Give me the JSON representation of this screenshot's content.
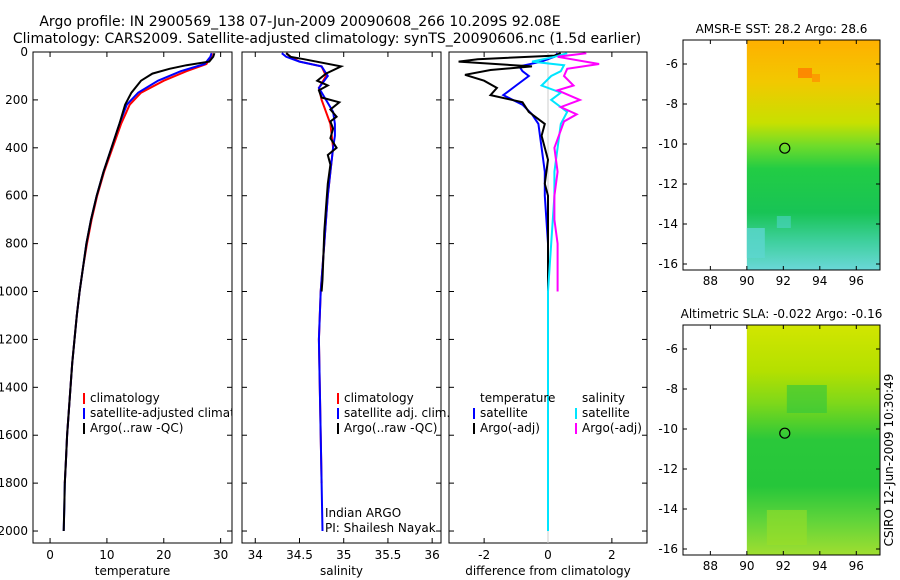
{
  "header": {
    "line1": "Argo profile: IN 2900569_138 07-Jun-2009 20090608_266 10.209S 92.08E",
    "line2": "Climatology: CARS2009. Satellite-adjusted climatology: synTS_20090606.nc (1.5d earlier)"
  },
  "side_label": "CSIRO 12-Jun-2009 10:30:49",
  "chart_data": [
    {
      "id": "temperature",
      "type": "line",
      "xlabel": "temperature",
      "ylabel": "",
      "xlim": [
        -3,
        32
      ],
      "ylim": [
        2050,
        0
      ],
      "xticks": [
        0,
        10,
        20,
        30
      ],
      "yticks": [
        0,
        200,
        400,
        600,
        800,
        1000,
        1200,
        1400,
        1600,
        1800,
        2000
      ],
      "legend": [
        "climatology",
        "satellite-adjusted climatology",
        "Argo(..raw -QC)"
      ],
      "series": [
        {
          "name": "climatology",
          "color": "#ff0000",
          "points": [
            [
              28.5,
              5
            ],
            [
              28.3,
              20
            ],
            [
              27.5,
              50
            ],
            [
              24,
              80
            ],
            [
              20,
              120
            ],
            [
              16,
              170
            ],
            [
              14,
              220
            ],
            [
              12.5,
              300
            ],
            [
              11,
              400
            ],
            [
              9.5,
              500
            ],
            [
              8.3,
              600
            ],
            [
              7.3,
              700
            ],
            [
              6.5,
              800
            ],
            [
              5.8,
              900
            ],
            [
              5.2,
              1000
            ],
            [
              4.7,
              1100
            ],
            [
              4.3,
              1200
            ],
            [
              3.9,
              1300
            ],
            [
              3.6,
              1400
            ],
            [
              3.3,
              1500
            ],
            [
              3.0,
              1600
            ],
            [
              2.8,
              1700
            ],
            [
              2.6,
              1800
            ]
          ]
        },
        {
          "name": "satellite-adjusted climatology",
          "color": "#0000ff",
          "points": [
            [
              28.4,
              5
            ],
            [
              28.2,
              20
            ],
            [
              27.2,
              50
            ],
            [
              23,
              80
            ],
            [
              19,
              120
            ],
            [
              15.5,
              170
            ],
            [
              13.5,
              220
            ],
            [
              12.2,
              300
            ],
            [
              10.8,
              400
            ],
            [
              9.4,
              500
            ],
            [
              8.2,
              600
            ],
            [
              7.2,
              700
            ],
            [
              6.4,
              800
            ],
            [
              5.8,
              900
            ],
            [
              5.2,
              1000
            ],
            [
              4.7,
              1100
            ],
            [
              4.3,
              1200
            ],
            [
              3.9,
              1300
            ],
            [
              3.6,
              1400
            ],
            [
              3.3,
              1500
            ],
            [
              3.0,
              1600
            ],
            [
              2.8,
              1700
            ],
            [
              2.6,
              1800
            ],
            [
              2.5,
              1900
            ],
            [
              2.4,
              2000
            ]
          ]
        },
        {
          "name": "Argo(..raw -QC)",
          "color": "#000000",
          "points": [
            [
              28.9,
              5
            ],
            [
              28.7,
              20
            ],
            [
              28,
              40
            ],
            [
              24,
              55
            ],
            [
              21,
              70
            ],
            [
              18,
              90
            ],
            [
              16,
              120
            ],
            [
              14.3,
              170
            ],
            [
              13.2,
              220
            ],
            [
              12.2,
              300
            ],
            [
              10.8,
              400
            ],
            [
              9.4,
              500
            ],
            [
              8.2,
              600
            ],
            [
              7.2,
              700
            ],
            [
              6.4,
              800
            ],
            [
              5.8,
              900
            ],
            [
              5.2,
              1000
            ],
            [
              4.7,
              1100
            ],
            [
              4.3,
              1200
            ],
            [
              3.9,
              1300
            ],
            [
              3.6,
              1400
            ],
            [
              3.3,
              1500
            ],
            [
              3.0,
              1600
            ],
            [
              2.8,
              1700
            ],
            [
              2.6,
              1800
            ],
            [
              2.5,
              1900
            ],
            [
              2.4,
              2000
            ]
          ]
        }
      ]
    },
    {
      "id": "salinity",
      "type": "line",
      "xlabel": "salinity",
      "ylabel": "",
      "xlim": [
        33.85,
        36.1
      ],
      "ylim": [
        2050,
        0
      ],
      "xticks": [
        34,
        34.5,
        35,
        35.5,
        36
      ],
      "yticks": [
        0,
        200,
        400,
        600,
        800,
        1000,
        1200,
        1400,
        1600,
        1800,
        2000
      ],
      "legend": [
        "climatology",
        "satellite adj. clim.",
        "Argo(..raw -QC)"
      ],
      "annotation": [
        "Indian ARGO",
        "PI: Shailesh Nayak"
      ],
      "series": [
        {
          "name": "climatology",
          "color": "#ff0000",
          "points": [
            [
              34.35,
              5
            ],
            [
              34.4,
              20
            ],
            [
              34.5,
              40
            ],
            [
              34.75,
              60
            ],
            [
              34.8,
              100
            ],
            [
              34.72,
              150
            ],
            [
              34.75,
              200
            ],
            [
              34.8,
              250
            ],
            [
              34.85,
              300
            ],
            [
              34.88,
              400
            ],
            [
              34.85,
              500
            ],
            [
              34.82,
              600
            ],
            [
              34.8,
              700
            ],
            [
              34.78,
              800
            ],
            [
              34.76,
              900
            ],
            [
              34.74,
              1000
            ],
            [
              34.73,
              1100
            ],
            [
              34.72,
              1200
            ],
            [
              34.73,
              1400
            ],
            [
              34.74,
              1600
            ],
            [
              34.75,
              1800
            ]
          ]
        },
        {
          "name": "satellite adj. clim.",
          "color": "#0000ff",
          "points": [
            [
              34.3,
              5
            ],
            [
              34.35,
              20
            ],
            [
              34.5,
              40
            ],
            [
              34.75,
              60
            ],
            [
              34.82,
              100
            ],
            [
              34.72,
              150
            ],
            [
              34.8,
              200
            ],
            [
              34.88,
              250
            ],
            [
              34.9,
              300
            ],
            [
              34.9,
              350
            ],
            [
              34.88,
              400
            ],
            [
              34.85,
              500
            ],
            [
              34.82,
              600
            ],
            [
              34.8,
              700
            ],
            [
              34.78,
              800
            ],
            [
              34.76,
              900
            ],
            [
              34.74,
              1000
            ],
            [
              34.73,
              1100
            ],
            [
              34.72,
              1200
            ],
            [
              34.73,
              1400
            ],
            [
              34.74,
              1600
            ],
            [
              34.75,
              1800
            ],
            [
              34.76,
              2000
            ]
          ]
        },
        {
          "name": "Argo(..raw -QC)",
          "color": "#000000",
          "points": [
            [
              34.35,
              5
            ],
            [
              34.4,
              20
            ],
            [
              34.55,
              30
            ],
            [
              34.97,
              60
            ],
            [
              34.8,
              90
            ],
            [
              34.7,
              120
            ],
            [
              34.82,
              140
            ],
            [
              34.72,
              160
            ],
            [
              34.75,
              190
            ],
            [
              34.95,
              210
            ],
            [
              34.85,
              240
            ],
            [
              34.92,
              270
            ],
            [
              34.85,
              290
            ],
            [
              34.88,
              320
            ],
            [
              34.85,
              360
            ],
            [
              34.92,
              400
            ],
            [
              34.82,
              430
            ],
            [
              34.85,
              470
            ],
            [
              34.82,
              550
            ],
            [
              34.8,
              650
            ],
            [
              34.78,
              750
            ],
            [
              34.77,
              850
            ],
            [
              34.76,
              950
            ],
            [
              34.75,
              1000
            ]
          ]
        }
      ]
    },
    {
      "id": "difference",
      "type": "line",
      "xlabel": "difference from climatology",
      "ylabel": "",
      "xlim": [
        -3.1,
        3.1
      ],
      "ylim": [
        2050,
        0
      ],
      "xticks": [
        -2,
        0,
        2
      ],
      "yticks": [
        0,
        200,
        400,
        600,
        800,
        1000,
        1200,
        1400,
        1600,
        1800,
        2000
      ],
      "legend_left_title": "temperature",
      "legend_left": [
        "satellite",
        "Argo(-adj)"
      ],
      "legend_right_title": "salinity",
      "legend_right": [
        "satellite",
        "Argo(-adj)"
      ],
      "series": [
        {
          "name": "temperature satellite",
          "color": "#0000ff",
          "points": [
            [
              0.3,
              5
            ],
            [
              0.2,
              20
            ],
            [
              -0.2,
              40
            ],
            [
              -0.9,
              60
            ],
            [
              -0.8,
              80
            ],
            [
              -0.6,
              100
            ],
            [
              -1,
              140
            ],
            [
              -1.4,
              180
            ],
            [
              -0.8,
              220
            ],
            [
              -0.5,
              260
            ],
            [
              -0.3,
              300
            ],
            [
              -0.2,
              400
            ],
            [
              -0.1,
              500
            ],
            [
              -0.1,
              600
            ],
            [
              0,
              800
            ],
            [
              0,
              1000
            ],
            [
              0,
              1200
            ],
            [
              0,
              1400
            ],
            [
              0,
              1600
            ],
            [
              0,
              1800
            ],
            [
              0,
              2000
            ]
          ]
        },
        {
          "name": "temperature Argo(-adj)",
          "color": "#000000",
          "points": [
            [
              0.4,
              5
            ],
            [
              0.2,
              15
            ],
            [
              -2.2,
              30
            ],
            [
              -2.8,
              40
            ],
            [
              -0.5,
              60
            ],
            [
              -1.8,
              75
            ],
            [
              -2.6,
              95
            ],
            [
              -2,
              120
            ],
            [
              -1.6,
              150
            ],
            [
              -1.8,
              180
            ],
            [
              -0.8,
              210
            ],
            [
              -0.6,
              250
            ],
            [
              -0.1,
              300
            ],
            [
              -0.2,
              350
            ],
            [
              -0.1,
              400
            ],
            [
              0,
              450
            ],
            [
              -0.1,
              550
            ],
            [
              0,
              600
            ],
            [
              0,
              700
            ],
            [
              0,
              800
            ],
            [
              0,
              900
            ],
            [
              0,
              1000
            ],
            [
              0,
              1200
            ],
            [
              0,
              1400
            ],
            [
              0,
              1600
            ],
            [
              0,
              1800
            ],
            [
              0,
              2000
            ]
          ]
        },
        {
          "name": "salinity satellite",
          "color": "#00e5ff",
          "points": [
            [
              0.6,
              5
            ],
            [
              0.2,
              20
            ],
            [
              -0.5,
              40
            ],
            [
              0.5,
              55
            ],
            [
              0.4,
              80
            ],
            [
              0.1,
              100
            ],
            [
              -0.2,
              140
            ],
            [
              0.4,
              170
            ],
            [
              0.1,
              200
            ],
            [
              0.6,
              250
            ],
            [
              0.4,
              300
            ],
            [
              0.3,
              400
            ],
            [
              0.2,
              500
            ],
            [
              0.2,
              600
            ],
            [
              0.1,
              800
            ],
            [
              0,
              1000
            ],
            [
              0,
              1200
            ],
            [
              0,
              1400
            ],
            [
              0,
              1600
            ],
            [
              0,
              1800
            ],
            [
              0,
              2000
            ]
          ]
        },
        {
          "name": "salinity Argo(-adj)",
          "color": "#ff00ff",
          "points": [
            [
              1.2,
              5
            ],
            [
              0.3,
              20
            ],
            [
              1.6,
              50
            ],
            [
              0.6,
              70
            ],
            [
              0.5,
              100
            ],
            [
              0.8,
              140
            ],
            [
              0.3,
              160
            ],
            [
              1.0,
              200
            ],
            [
              0.4,
              230
            ],
            [
              0.9,
              260
            ],
            [
              0.5,
              290
            ],
            [
              0.2,
              400
            ],
            [
              0.3,
              500
            ],
            [
              0.2,
              600
            ],
            [
              0.2,
              700
            ],
            [
              0.3,
              800
            ],
            [
              0.3,
              900
            ],
            [
              0.3,
              1000
            ]
          ]
        }
      ]
    },
    {
      "id": "sst_map",
      "type": "heatmap",
      "title": "AMSR-E SST: 28.2  Argo: 28.6",
      "xlim": [
        86.5,
        97.3
      ],
      "ylim": [
        -16.3,
        -4.8
      ],
      "xticks": [
        88,
        90,
        92,
        94,
        96
      ],
      "yticks": [
        -6,
        -8,
        -10,
        -12,
        -14,
        -16
      ],
      "data_x_start": 90,
      "marker": [
        92.08,
        -10.21
      ]
    },
    {
      "id": "sla_map",
      "type": "heatmap",
      "title": "Altimetric SLA: -0.022  Argo: -0.16",
      "xlim": [
        86.5,
        97.3
      ],
      "ylim": [
        -16.3,
        -4.8
      ],
      "xticks": [
        88,
        90,
        92,
        94,
        96
      ],
      "yticks": [
        -6,
        -8,
        -10,
        -12,
        -14,
        -16
      ],
      "data_x_start": 90,
      "marker": [
        92.08,
        -10.21
      ]
    }
  ]
}
